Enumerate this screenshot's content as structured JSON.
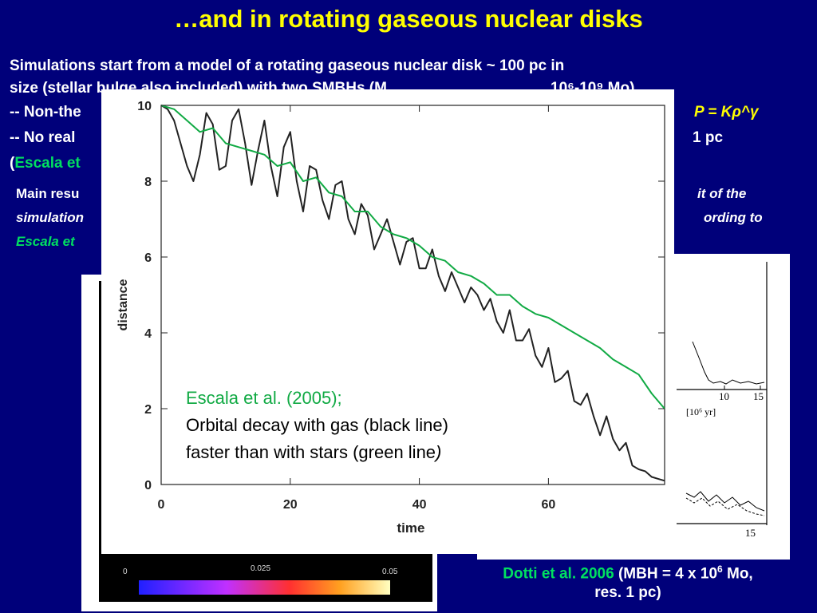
{
  "slide": {
    "title": "…and in rotating gaseous nuclear disks",
    "bullets": {
      "line1": "Simulations start from a model of a rotating gaseous nuclear disk  ~ 100 pc in",
      "line2_visible": "size  (stellar bulge also included) with two SMBHs (M",
      "line2_tail": "10⁶-10⁹ Mo)",
      "line3_start": "-- Non-the",
      "line3_end": "P = Kρ^γ",
      "line4_start": "-- No real",
      "line4_end": "1 pc",
      "line5_paren": "(",
      "line5_green": "Escala et"
    },
    "main_results": {
      "line1_start": "Main resu",
      "line1_end": "it of the",
      "line2_start": "simulation",
      "line2_end": "ording to",
      "line3_green": "Escala et"
    },
    "dotti_caption": {
      "green": "Dotti et al. 2006",
      "text": " (MBH = 4 x 10",
      "sup": "6",
      "text2": " Mo,",
      "line2": "res. 1 pc)"
    }
  },
  "left_image": {
    "colorbar_ticks": [
      "0",
      "0.025",
      "0.05"
    ]
  },
  "right_image": {
    "tick_labels": [
      "10",
      "15",
      "[10⁶ yr]",
      "15"
    ]
  },
  "chart_data": {
    "type": "line",
    "xlabel": "time",
    "ylabel": "distance",
    "xlim": [
      0,
      78
    ],
    "ylim": [
      0,
      10
    ],
    "x_ticks": [
      0,
      20,
      40,
      60
    ],
    "y_ticks": [
      0,
      2,
      4,
      6,
      8,
      10
    ],
    "annotation": {
      "line1": "Escala et al. (2005);",
      "line2": "Orbital decay with gas (black line)",
      "line3": "faster than with stars (green line",
      "line3_end": ")"
    },
    "series": [
      {
        "color": "#222222",
        "x": [
          0,
          1,
          2,
          3,
          4,
          5,
          6,
          7,
          8,
          9,
          10,
          11,
          12,
          13,
          14,
          15,
          16,
          17,
          18,
          19,
          20,
          21,
          22,
          23,
          24,
          25,
          26,
          27,
          28,
          29,
          30,
          31,
          32,
          33,
          34,
          35,
          36,
          37,
          38,
          39,
          40,
          41,
          42,
          43,
          44,
          45,
          46,
          47,
          48,
          49,
          50,
          51,
          52,
          53,
          54,
          55,
          56,
          57,
          58,
          59,
          60,
          61,
          62,
          63,
          64,
          65,
          66,
          67,
          68,
          69,
          70,
          71,
          72,
          73,
          74,
          75,
          76,
          77,
          78
        ],
        "y": [
          10,
          9.9,
          9.6,
          9.0,
          8.4,
          8.0,
          8.7,
          9.8,
          9.5,
          8.3,
          8.4,
          9.6,
          9.9,
          9.0,
          7.9,
          8.8,
          9.6,
          8.4,
          7.6,
          8.9,
          9.3,
          8.0,
          7.2,
          8.4,
          8.3,
          7.5,
          7.0,
          7.9,
          8.0,
          7.0,
          6.6,
          7.4,
          7.1,
          6.2,
          6.6,
          7.0,
          6.4,
          5.8,
          6.4,
          6.5,
          5.7,
          5.7,
          6.2,
          5.5,
          5.1,
          5.6,
          5.2,
          4.8,
          5.2,
          5.0,
          4.6,
          4.9,
          4.3,
          4.0,
          4.6,
          3.8,
          3.8,
          4.1,
          3.4,
          3.1,
          3.6,
          2.7,
          2.8,
          3.0,
          2.2,
          2.1,
          2.4,
          1.8,
          1.3,
          1.8,
          1.2,
          0.9,
          1.1,
          0.5,
          0.4,
          0.35,
          0.2,
          0.15,
          0.1
        ]
      },
      {
        "color": "#11aa44",
        "x": [
          0,
          2,
          4,
          6,
          8,
          10,
          12,
          14,
          16,
          18,
          20,
          22,
          24,
          26,
          28,
          30,
          32,
          34,
          36,
          38,
          40,
          42,
          44,
          46,
          48,
          50,
          52,
          54,
          56,
          58,
          60,
          62,
          64,
          66,
          68,
          70,
          72,
          74,
          76,
          78
        ],
        "y": [
          10,
          9.9,
          9.6,
          9.3,
          9.4,
          9.0,
          8.9,
          8.8,
          8.7,
          8.4,
          8.5,
          8.0,
          8.1,
          7.7,
          7.6,
          7.2,
          7.2,
          6.8,
          6.6,
          6.5,
          6.3,
          6.0,
          5.9,
          5.6,
          5.5,
          5.3,
          5.0,
          5.0,
          4.7,
          4.5,
          4.4,
          4.2,
          4.0,
          3.8,
          3.6,
          3.3,
          3.1,
          2.9,
          2.4,
          2.0
        ]
      }
    ]
  },
  "colors": {
    "background": "#00007a",
    "title": "#ffff00",
    "green_text": "#00e060"
  }
}
